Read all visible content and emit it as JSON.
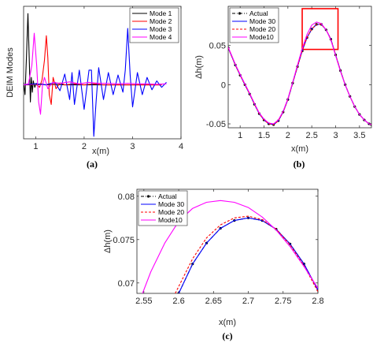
{
  "chart_data": [
    {
      "type": "line",
      "panel": "(a)",
      "ylabel": "DEIM Modes",
      "xlabel": "x(m)",
      "xlim": [
        0.75,
        4
      ],
      "ylim": [
        -1.1,
        1.6
      ],
      "xticks": [
        "1",
        "2",
        "3",
        "4"
      ],
      "yticks": [],
      "legend": "top-right",
      "series": [
        {
          "name": "Mode 1",
          "color": "#000000",
          "x": [
            0.75,
            0.78,
            0.81,
            0.84,
            0.87,
            0.89,
            0.91,
            0.93,
            0.95,
            0.98,
            1.01,
            1.05,
            1.1,
            1.2,
            1.4,
            1.6,
            1.8,
            2.0,
            2.2,
            2.4,
            2.6,
            2.8,
            3.0,
            3.2,
            3.4,
            3.6
          ],
          "y": [
            0.05,
            -0.2,
            0.6,
            1.45,
            0.4,
            -0.35,
            0.15,
            -0.15,
            0.08,
            -0.05,
            0.03,
            0.0,
            0.02,
            0.0,
            0.01,
            0.0,
            0.0,
            0.0,
            0.0,
            0.0,
            0.0,
            0.0,
            0.0,
            0.0,
            0.0,
            0.0
          ]
        },
        {
          "name": "Mode 2",
          "color": "#ff0000",
          "x": [
            0.75,
            0.9,
            1.0,
            1.08,
            1.13,
            1.18,
            1.22,
            1.25,
            1.28,
            1.32,
            1.36,
            1.42,
            1.5,
            1.6,
            1.8,
            2.0,
            2.2,
            2.4,
            2.6,
            2.8,
            3.0,
            3.2,
            3.4,
            3.6
          ],
          "y": [
            0.0,
            0.0,
            0.02,
            -0.05,
            0.1,
            0.5,
            1.0,
            0.55,
            -0.2,
            -0.4,
            0.15,
            -0.08,
            0.04,
            0.0,
            0.02,
            0.0,
            0.02,
            0.0,
            0.0,
            0.0,
            0.0,
            0.0,
            0.0,
            0.0
          ]
        },
        {
          "name": "Mode 3",
          "color": "#0000ff",
          "x": [
            0.75,
            1.0,
            1.2,
            1.4,
            1.5,
            1.6,
            1.7,
            1.75,
            1.8,
            1.9,
            2.0,
            2.1,
            2.15,
            2.2,
            2.25,
            2.3,
            2.4,
            2.5,
            2.6,
            2.7,
            2.8,
            2.85,
            2.9,
            2.95,
            3.0,
            3.1,
            3.2,
            3.3,
            3.4,
            3.5,
            3.6,
            3.7
          ],
          "y": [
            0.0,
            0.02,
            0.0,
            0.05,
            -0.12,
            0.22,
            -0.3,
            0.25,
            -0.4,
            0.3,
            -0.5,
            0.3,
            0.3,
            -1.05,
            -0.3,
            0.35,
            -0.3,
            0.25,
            -0.2,
            0.2,
            -0.15,
            0.3,
            1.15,
            0.2,
            -0.45,
            0.25,
            -0.2,
            0.15,
            -0.1,
            0.08,
            -0.05,
            0.05
          ]
        },
        {
          "name": "Mode 4",
          "color": "#ff00ff",
          "x": [
            0.75,
            0.85,
            0.92,
            0.97,
            1.02,
            1.06,
            1.1,
            1.14,
            1.18,
            1.25,
            1.35,
            1.5,
            1.7,
            1.9,
            2.1,
            2.3,
            2.5,
            2.7,
            2.9,
            3.1,
            3.3,
            3.5,
            3.7
          ],
          "y": [
            0.0,
            0.02,
            0.4,
            1.05,
            0.4,
            -0.35,
            -0.6,
            0.0,
            0.15,
            -0.08,
            0.05,
            0.03,
            0.06,
            0.02,
            0.05,
            0.03,
            0.03,
            0.02,
            0.03,
            0.02,
            0.02,
            0.01,
            0.02
          ]
        }
      ]
    },
    {
      "type": "line",
      "panel": "(b)",
      "ylabel": "Δh(m)",
      "xlabel": "x(m)",
      "xlim": [
        0.75,
        3.75
      ],
      "ylim": [
        -0.055,
        0.1
      ],
      "xticks": [
        "1",
        "1.5",
        "2",
        "2.5",
        "3",
        "3.5"
      ],
      "yticks": [
        "-0.05",
        "0",
        "0.05"
      ],
      "legend": "top-left",
      "highlight_box": {
        "x": [
          2.3,
          3.05
        ],
        "y": [
          0.045,
          0.097
        ],
        "color": "#ff0000"
      },
      "series": [
        {
          "name": "Actual",
          "color": "#000000",
          "style": "dash-dot-marker",
          "x": [
            0.75,
            0.9,
            1.0,
            1.1,
            1.2,
            1.3,
            1.4,
            1.5,
            1.6,
            1.7,
            1.8,
            1.9,
            2.0,
            2.1,
            2.2,
            2.3,
            2.4,
            2.5,
            2.6,
            2.7,
            2.8,
            2.9,
            3.0,
            3.1,
            3.2,
            3.3,
            3.4,
            3.5,
            3.6,
            3.7,
            3.75
          ],
          "y": [
            0.047,
            0.025,
            0.012,
            0.0,
            -0.012,
            -0.025,
            -0.037,
            -0.045,
            -0.05,
            -0.051,
            -0.046,
            -0.035,
            -0.019,
            0.002,
            0.023,
            0.043,
            0.06,
            0.071,
            0.077,
            0.077,
            0.07,
            0.058,
            0.038,
            0.018,
            0.0,
            -0.015,
            -0.028,
            -0.038,
            -0.045,
            -0.05,
            -0.051
          ]
        },
        {
          "name": "Mode 30",
          "color": "#0000ff",
          "style": "solid",
          "x": [
            0.75,
            0.9,
            1.0,
            1.1,
            1.2,
            1.3,
            1.4,
            1.5,
            1.6,
            1.7,
            1.8,
            1.9,
            2.0,
            2.1,
            2.2,
            2.3,
            2.4,
            2.5,
            2.6,
            2.7,
            2.8,
            2.9,
            3.0,
            3.1,
            3.2,
            3.3,
            3.4,
            3.5,
            3.6,
            3.7,
            3.75
          ],
          "y": [
            0.047,
            0.025,
            0.012,
            0.0,
            -0.012,
            -0.025,
            -0.037,
            -0.045,
            -0.05,
            -0.051,
            -0.046,
            -0.035,
            -0.019,
            0.002,
            0.023,
            0.043,
            0.06,
            0.071,
            0.077,
            0.077,
            0.07,
            0.058,
            0.038,
            0.018,
            0.0,
            -0.015,
            -0.028,
            -0.038,
            -0.045,
            -0.05,
            -0.051
          ]
        },
        {
          "name": "Mode 20",
          "color": "#ff0000",
          "style": "dashed",
          "x": [
            0.75,
            0.9,
            1.0,
            1.1,
            1.2,
            1.3,
            1.4,
            1.5,
            1.6,
            1.7,
            1.8,
            1.9,
            2.0,
            2.1,
            2.2,
            2.3,
            2.4,
            2.5,
            2.6,
            2.7,
            2.8,
            2.9,
            3.0,
            3.1,
            3.2,
            3.3,
            3.4,
            3.5,
            3.6,
            3.7,
            3.75
          ],
          "y": [
            0.047,
            0.025,
            0.012,
            0.0,
            -0.012,
            -0.025,
            -0.037,
            -0.045,
            -0.05,
            -0.051,
            -0.046,
            -0.035,
            -0.019,
            0.002,
            0.023,
            0.043,
            0.06,
            0.071,
            0.077,
            0.077,
            0.07,
            0.058,
            0.038,
            0.018,
            0.0,
            -0.015,
            -0.028,
            -0.038,
            -0.045,
            -0.05,
            -0.051
          ]
        },
        {
          "name": "Mode10",
          "color": "#ff00ff",
          "style": "solid",
          "x": [
            0.75,
            0.9,
            1.0,
            1.1,
            1.2,
            1.3,
            1.4,
            1.5,
            1.6,
            1.7,
            1.8,
            1.9,
            2.0,
            2.1,
            2.2,
            2.3,
            2.4,
            2.5,
            2.6,
            2.7,
            2.8,
            2.9,
            3.0,
            3.1,
            3.2,
            3.3,
            3.4,
            3.5,
            3.6,
            3.7,
            3.75
          ],
          "y": [
            0.048,
            0.026,
            0.013,
            0.001,
            -0.011,
            -0.024,
            -0.036,
            -0.044,
            -0.049,
            -0.05,
            -0.045,
            -0.034,
            -0.018,
            0.003,
            0.025,
            0.046,
            0.064,
            0.076,
            0.08,
            0.078,
            0.07,
            0.057,
            0.037,
            0.017,
            0.0,
            -0.015,
            -0.028,
            -0.038,
            -0.045,
            -0.05,
            -0.051
          ]
        }
      ]
    },
    {
      "type": "line",
      "panel": "(c)",
      "ylabel": "Δh(m)",
      "xlabel": "x(m)",
      "xlim": [
        2.54,
        2.8
      ],
      "ylim": [
        0.0688,
        0.0808
      ],
      "xticks": [
        "2.55",
        "2.6",
        "2.65",
        "2.7",
        "2.75",
        "2.8"
      ],
      "yticks": [
        "0.07",
        "0.075",
        "0.08"
      ],
      "legend": "top-left",
      "series": [
        {
          "name": "Actual",
          "color": "#000000",
          "style": "dash-dot-marker",
          "x": [
            2.6,
            2.62,
            2.64,
            2.66,
            2.68,
            2.7,
            2.72,
            2.74,
            2.76,
            2.78,
            2.8
          ],
          "y": [
            0.0688,
            0.0722,
            0.0746,
            0.0763,
            0.0772,
            0.0775,
            0.0772,
            0.0762,
            0.0745,
            0.0722,
            0.0692
          ]
        },
        {
          "name": "Mode 30",
          "color": "#0000ff",
          "style": "solid",
          "x": [
            2.6,
            2.62,
            2.64,
            2.66,
            2.68,
            2.7,
            2.72,
            2.74,
            2.76,
            2.78,
            2.8
          ],
          "y": [
            0.0688,
            0.0722,
            0.0746,
            0.0763,
            0.0772,
            0.0775,
            0.0772,
            0.0762,
            0.0745,
            0.0722,
            0.0692
          ]
        },
        {
          "name": "Mode 20",
          "color": "#ff0000",
          "style": "dashed",
          "x": [
            2.595,
            2.62,
            2.64,
            2.66,
            2.68,
            2.7,
            2.72,
            2.74,
            2.76,
            2.78,
            2.8
          ],
          "y": [
            0.0688,
            0.0728,
            0.0752,
            0.0767,
            0.0775,
            0.0777,
            0.0773,
            0.0762,
            0.0744,
            0.072,
            0.069
          ]
        },
        {
          "name": "Mode10",
          "color": "#ff00ff",
          "style": "solid",
          "x": [
            2.548,
            2.56,
            2.58,
            2.6,
            2.62,
            2.64,
            2.66,
            2.68,
            2.7,
            2.72,
            2.74,
            2.76,
            2.78,
            2.8
          ],
          "y": [
            0.0688,
            0.0713,
            0.0746,
            0.0771,
            0.0786,
            0.0793,
            0.0795,
            0.0793,
            0.0787,
            0.0776,
            0.0761,
            0.0742,
            0.0719,
            0.0694
          ]
        }
      ]
    }
  ]
}
